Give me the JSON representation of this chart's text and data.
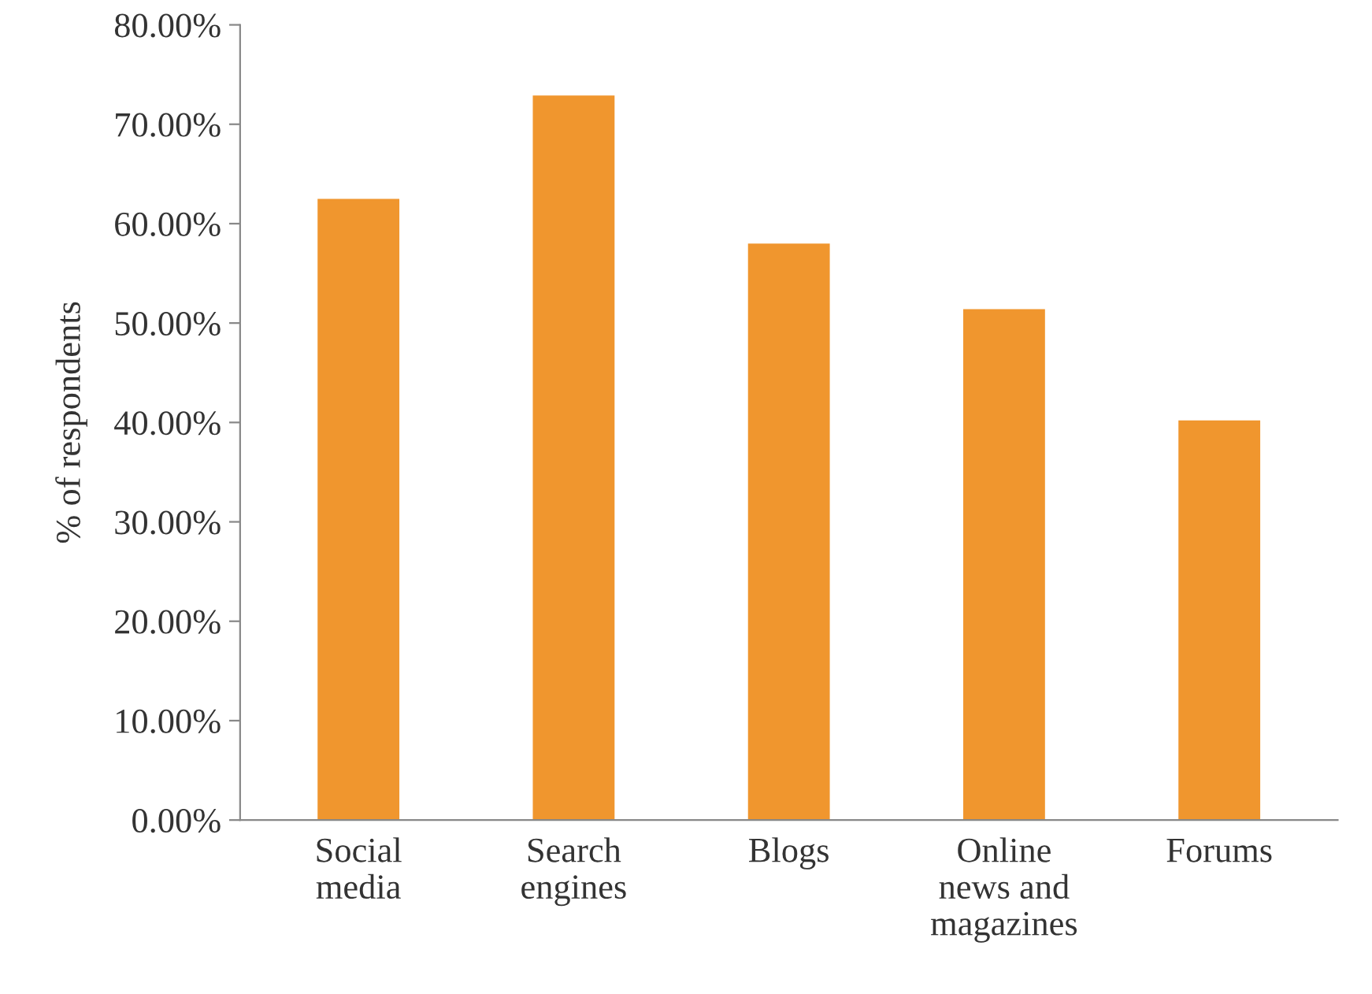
{
  "chart_data": {
    "type": "bar",
    "ylabel": "% of respondents",
    "categories": [
      "Social\nmedia",
      "Search\nengines",
      "Blogs",
      "Online\nnews and\nmagazines",
      "Forums"
    ],
    "values": [
      62.5,
      72.9,
      58,
      51.4,
      40.2
    ],
    "color": "#f0962e",
    "ylim": [
      0,
      80
    ],
    "yticks": [
      {
        "value": 0,
        "label": "0.00%"
      },
      {
        "value": 10,
        "label": "10.00%"
      },
      {
        "value": 20,
        "label": "20.00%"
      },
      {
        "value": 30,
        "label": "30.00%"
      },
      {
        "value": 40,
        "label": "40.00%"
      },
      {
        "value": 50,
        "label": "50.00%"
      },
      {
        "value": 60,
        "label": "60.00%"
      },
      {
        "value": 70,
        "label": "70.00%"
      },
      {
        "value": 80,
        "label": "80.00%"
      }
    ],
    "grid": false,
    "legend": false
  }
}
